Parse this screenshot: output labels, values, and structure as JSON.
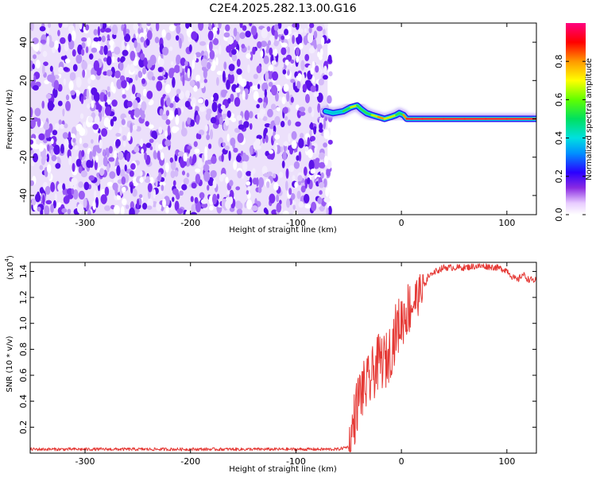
{
  "title": "C2E4.2025.282.13.00.G16",
  "chart_data": [
    {
      "type": "heatmap",
      "xlabel": "Height of straight line (km)",
      "ylabel": "Frequency (Hz)",
      "xlim": [
        -352,
        128
      ],
      "ylim": [
        -50,
        50
      ],
      "xticks": [
        -300,
        -200,
        -100,
        0,
        100
      ],
      "xtick_labels": [
        "-300",
        "-200",
        "-100",
        "0",
        "100"
      ],
      "yticks": [
        -40,
        -20,
        0,
        20,
        40
      ],
      "ytick_labels": [
        "-40",
        "-20",
        "0",
        "20",
        "40"
      ],
      "noise_region_x": [
        -352,
        -70
      ],
      "ridge": {
        "x": [
          -72,
          -65,
          -55,
          -48,
          -42,
          -38,
          -33,
          -28,
          -22,
          -16,
          -10,
          -5,
          -2,
          2,
          5,
          10,
          20,
          40,
          60,
          80,
          100,
          128
        ],
        "y": [
          4,
          3,
          4,
          6,
          7,
          5,
          3,
          2,
          1,
          0,
          1,
          2,
          3,
          2,
          0,
          0,
          0,
          0,
          0,
          0,
          0,
          0
        ],
        "amplitude": [
          0.35,
          0.5,
          0.6,
          0.7,
          0.75,
          0.65,
          0.55,
          0.65,
          0.8,
          0.85,
          0.75,
          0.7,
          0.6,
          0.75,
          0.9,
          0.95,
          0.95,
          0.92,
          0.9,
          0.92,
          0.9,
          0.88
        ]
      }
    },
    {
      "type": "line",
      "xlabel": "Height of straight line (km)",
      "ylabel": "SNR (10 * v/v)",
      "scale_label": "(x10",
      "scale_exponent": "4",
      "scale_close": ")",
      "xlim": [
        -352,
        128
      ],
      "ylim": [
        0,
        1.47
      ],
      "xticks": [
        -300,
        -200,
        -100,
        0,
        100
      ],
      "xtick_labels": [
        "-300",
        "-200",
        "-100",
        "0",
        "100"
      ],
      "yticks": [
        0.2,
        0.4,
        0.6,
        0.8,
        1.0,
        1.2,
        1.4
      ],
      "ytick_labels": [
        "0.2",
        "0.4",
        "0.6",
        "0.8",
        "1.0",
        "1.2",
        "1.4"
      ],
      "series": [
        {
          "name": "SNR",
          "color": "#e53935",
          "x": [
            -352,
            -300,
            -250,
            -200,
            -150,
            -100,
            -60,
            -50,
            -45,
            -40,
            -35,
            -30,
            -25,
            -20,
            -15,
            -10,
            -5,
            0,
            5,
            10,
            15,
            20,
            25,
            30,
            35,
            40,
            50,
            60,
            70,
            80,
            90,
            100,
            105,
            110,
            115,
            120,
            128
          ],
          "y": [
            0.03,
            0.03,
            0.03,
            0.03,
            0.03,
            0.03,
            0.03,
            0.05,
            0.25,
            0.45,
            0.5,
            0.55,
            0.65,
            0.72,
            0.7,
            0.8,
            0.95,
            1.02,
            1.1,
            1.15,
            1.2,
            1.28,
            1.34,
            1.39,
            1.41,
            1.43,
            1.43,
            1.43,
            1.44,
            1.44,
            1.43,
            1.41,
            1.36,
            1.33,
            1.38,
            1.34,
            1.33
          ]
        }
      ]
    }
  ],
  "colorbar": {
    "label": "Normalized spectral amplitude",
    "ticks": [
      0.0,
      0.2,
      0.4,
      0.6,
      0.8
    ],
    "tick_labels": [
      "0.0",
      "0.2",
      "0.4",
      "0.6",
      "0.8"
    ],
    "range": [
      0,
      1
    ]
  },
  "colors": {
    "snr_line": "#e53935",
    "noise": "#6a1ff2"
  }
}
